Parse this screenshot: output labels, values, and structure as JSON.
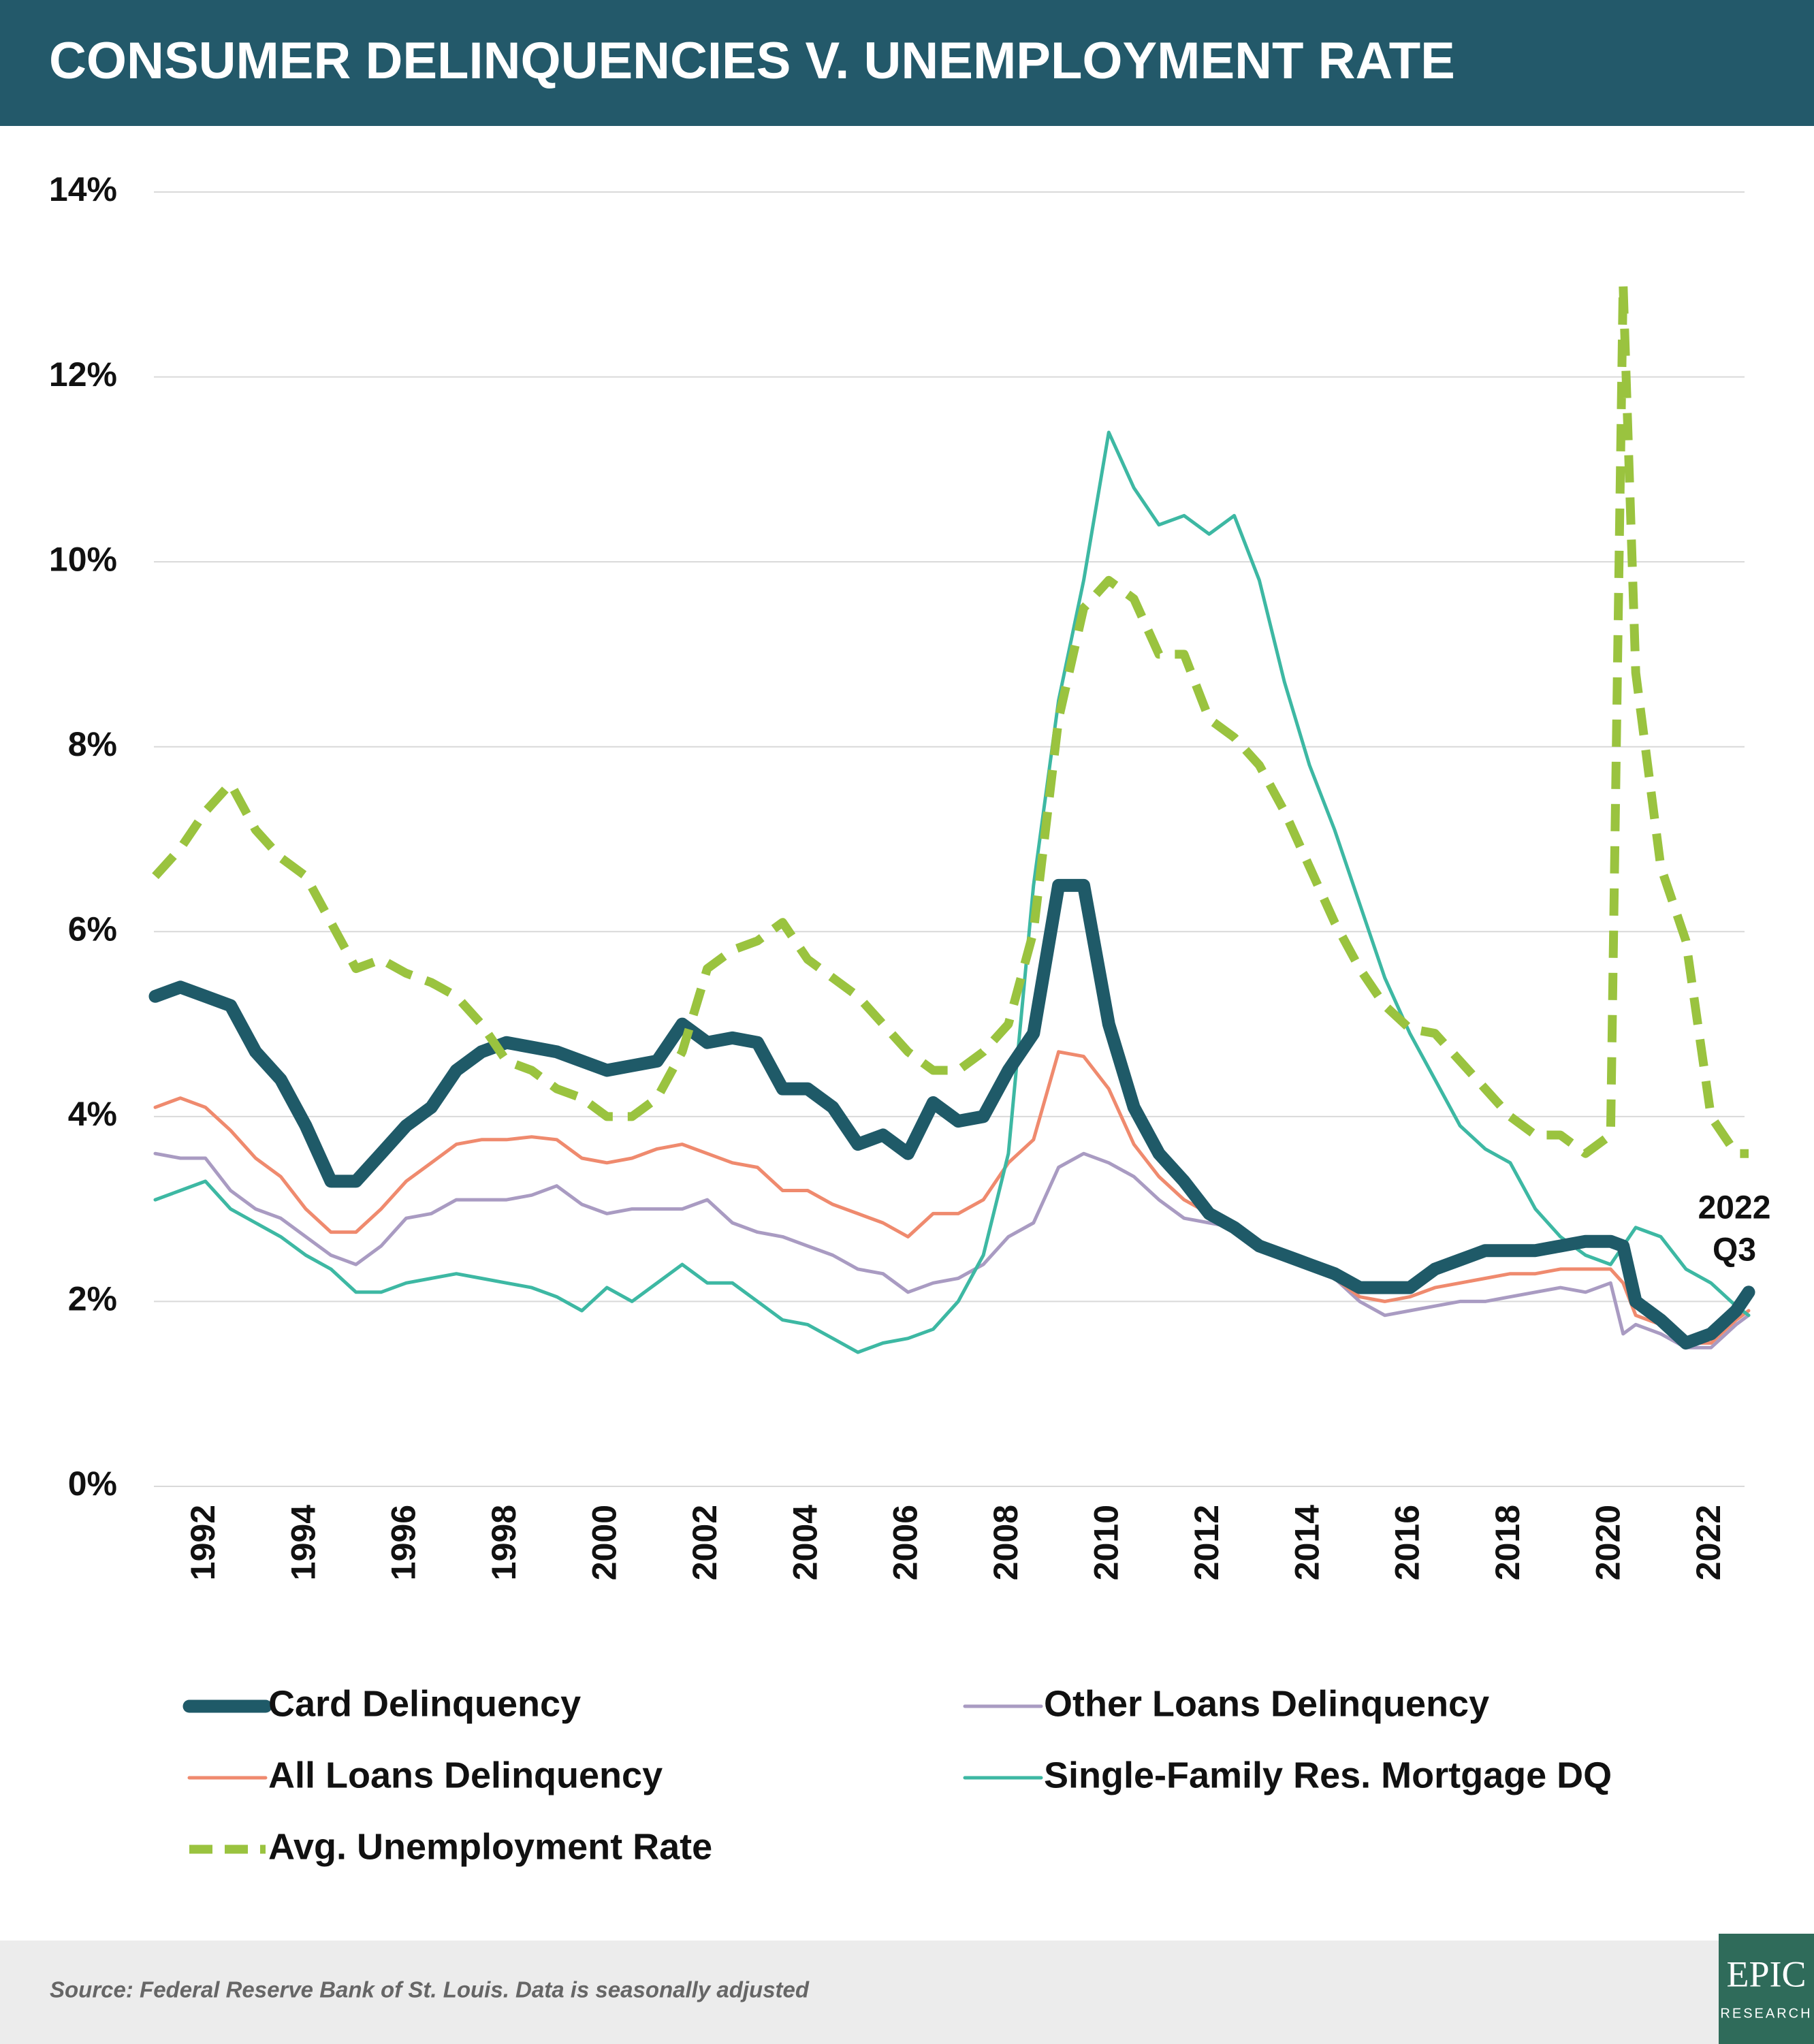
{
  "chart_data": {
    "type": "line",
    "title": "CONSUMER DELINQUENCIES V. UNEMPLOYMENT RATE",
    "source": "Source: Federal Reserve Bank of St. Louis. Data is seasonally adjusted",
    "annotation": [
      "2022",
      "Q3"
    ],
    "logo": [
      "EPIC",
      "RESEARCH"
    ],
    "x": [
      1991,
      1991.5,
      1992,
      1992.5,
      1993,
      1993.5,
      1994,
      1994.5,
      1995,
      1995.5,
      1996,
      1996.5,
      1997,
      1997.5,
      1998,
      1998.5,
      1999,
      1999.5,
      2000,
      2000.5,
      2001,
      2001.5,
      2002,
      2002.5,
      2003,
      2003.5,
      2004,
      2004.5,
      2005,
      2005.5,
      2006,
      2006.5,
      2007,
      2007.5,
      2008,
      2008.5,
      2009,
      2009.5,
      2010,
      2010.5,
      2011,
      2011.5,
      2012,
      2012.5,
      2013,
      2013.5,
      2014,
      2014.5,
      2015,
      2015.5,
      2016,
      2016.5,
      2017,
      2017.5,
      2018,
      2018.5,
      2019,
      2019.5,
      2020,
      2020.25,
      2020.5,
      2021,
      2021.5,
      2022,
      2022.5,
      2022.75
    ],
    "xlim": [
      1991,
      2022.75
    ],
    "xticks": [
      1992,
      1994,
      1996,
      1998,
      2000,
      2002,
      2004,
      2006,
      2008,
      2010,
      2012,
      2014,
      2016,
      2018,
      2020,
      2022
    ],
    "ylim": [
      0,
      14
    ],
    "yticks": [
      {
        "value": 0,
        "label": "0%"
      },
      {
        "value": 2,
        "label": "2%"
      },
      {
        "value": 4,
        "label": "4%"
      },
      {
        "value": 6,
        "label": "6%"
      },
      {
        "value": 8,
        "label": "8%"
      },
      {
        "value": 10,
        "label": "10%"
      },
      {
        "value": 12,
        "label": "12%"
      },
      {
        "value": 14,
        "label": "14%"
      }
    ],
    "grid": true,
    "legend": "bottom",
    "series": [
      {
        "name": "Card Delinquency",
        "color": "#1f5a68",
        "style": "solid",
        "values": [
          5.3,
          5.4,
          5.3,
          5.2,
          4.7,
          4.4,
          3.9,
          3.3,
          3.3,
          3.6,
          3.9,
          4.1,
          4.5,
          4.7,
          4.8,
          4.75,
          4.7,
          4.6,
          4.5,
          4.55,
          4.6,
          5.0,
          4.8,
          4.85,
          4.8,
          4.3,
          4.3,
          4.1,
          3.7,
          3.8,
          3.6,
          4.15,
          3.95,
          4.0,
          4.5,
          4.9,
          6.5,
          6.5,
          5.0,
          4.1,
          3.6,
          3.3,
          2.95,
          2.8,
          2.6,
          2.5,
          2.4,
          2.3,
          2.15,
          2.15,
          2.15,
          2.35,
          2.45,
          2.55,
          2.55,
          2.55,
          2.6,
          2.65,
          2.65,
          2.6,
          2.0,
          1.8,
          1.55,
          1.65,
          1.9,
          2.1
        ]
      },
      {
        "name": "Other Loans Delinquency",
        "color": "#a99bc2",
        "style": "solid",
        "values": [
          3.6,
          3.55,
          3.55,
          3.2,
          3.0,
          2.9,
          2.7,
          2.5,
          2.4,
          2.6,
          2.9,
          2.95,
          3.1,
          3.1,
          3.1,
          3.15,
          3.25,
          3.05,
          2.95,
          3.0,
          3.0,
          3.0,
          3.1,
          2.85,
          2.75,
          2.7,
          2.6,
          2.5,
          2.35,
          2.3,
          2.1,
          2.2,
          2.25,
          2.4,
          2.7,
          2.85,
          3.45,
          3.6,
          3.5,
          3.35,
          3.1,
          2.9,
          2.85,
          2.8,
          2.55,
          2.45,
          2.35,
          2.25,
          2.0,
          1.85,
          1.9,
          1.95,
          2.0,
          2.0,
          2.05,
          2.1,
          2.15,
          2.1,
          2.2,
          1.65,
          1.75,
          1.65,
          1.5,
          1.5,
          1.75,
          1.85
        ]
      },
      {
        "name": "All Loans Delinquency",
        "color": "#ef8a6e",
        "style": "solid",
        "values": [
          4.1,
          4.2,
          4.1,
          3.85,
          3.55,
          3.35,
          3.0,
          2.75,
          2.75,
          3.0,
          3.3,
          3.5,
          3.7,
          3.75,
          3.75,
          3.78,
          3.75,
          3.55,
          3.5,
          3.55,
          3.65,
          3.7,
          3.6,
          3.5,
          3.45,
          3.2,
          3.2,
          3.05,
          2.95,
          2.85,
          2.7,
          2.95,
          2.95,
          3.1,
          3.5,
          3.75,
          4.7,
          4.65,
          4.3,
          3.7,
          3.35,
          3.1,
          2.95,
          2.75,
          2.6,
          2.45,
          2.35,
          2.25,
          2.05,
          2.0,
          2.05,
          2.15,
          2.2,
          2.25,
          2.3,
          2.3,
          2.35,
          2.35,
          2.35,
          2.2,
          1.85,
          1.75,
          1.55,
          1.55,
          1.8,
          1.9
        ]
      },
      {
        "name": "Single-Family Res. Mortgage DQ",
        "color": "#3db8a3",
        "style": "solid",
        "values": [
          3.1,
          3.2,
          3.3,
          3.0,
          2.85,
          2.7,
          2.5,
          2.35,
          2.1,
          2.1,
          2.2,
          2.25,
          2.3,
          2.25,
          2.2,
          2.15,
          2.05,
          1.9,
          2.15,
          2.0,
          2.2,
          2.4,
          2.2,
          2.2,
          2.0,
          1.8,
          1.75,
          1.6,
          1.45,
          1.55,
          1.6,
          1.7,
          2.0,
          2.5,
          3.6,
          6.5,
          8.5,
          9.8,
          11.4,
          10.8,
          10.4,
          10.5,
          10.3,
          10.5,
          9.8,
          8.7,
          7.8,
          7.1,
          6.3,
          5.5,
          4.9,
          4.4,
          3.9,
          3.65,
          3.5,
          3.0,
          2.7,
          2.5,
          2.4,
          2.6,
          2.8,
          2.7,
          2.35,
          2.2,
          1.95,
          1.85
        ]
      },
      {
        "name": "Avg. Unemployment Rate",
        "color": "#9ac33f",
        "style": "dashed",
        "values": [
          6.6,
          6.9,
          7.3,
          7.6,
          7.1,
          6.8,
          6.6,
          6.1,
          5.6,
          5.7,
          5.55,
          5.45,
          5.3,
          5.0,
          4.6,
          4.5,
          4.3,
          4.2,
          4.0,
          4.0,
          4.2,
          4.7,
          5.6,
          5.8,
          5.9,
          6.1,
          5.7,
          5.5,
          5.3,
          5.0,
          4.7,
          4.5,
          4.5,
          4.7,
          5.0,
          6.0,
          8.3,
          9.5,
          9.8,
          9.6,
          9.0,
          9.0,
          8.3,
          8.1,
          7.8,
          7.3,
          6.7,
          6.1,
          5.6,
          5.2,
          4.95,
          4.9,
          4.6,
          4.3,
          4.0,
          3.8,
          3.8,
          3.6,
          3.8,
          13.0,
          8.8,
          6.7,
          5.9,
          4.0,
          3.6,
          3.6
        ]
      }
    ]
  }
}
